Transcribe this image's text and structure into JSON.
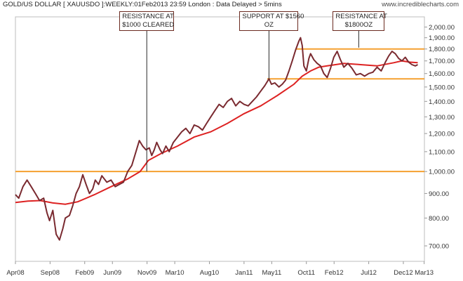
{
  "header": {
    "title": "GOLD/US DOLLAR [ XAUUSDO ]:WEEKLY:01Feb2013 23:59 London : Data Delayed > 5mins",
    "site": "www.incrediblecharts.com"
  },
  "annotations": [
    {
      "lines": [
        "RESISTANCE AT",
        "$1000 CLEARED"
      ],
      "date": "2009.83",
      "price": 1000
    },
    {
      "lines": [
        "SUPPORT AT $1560",
        "OZ"
      ],
      "date": "2011.3",
      "price": 1560
    },
    {
      "lines": [
        "RESISTANCE AT",
        "$1800OZ"
      ],
      "date": "2012.38",
      "price": 1800
    }
  ],
  "colors": {
    "price_line": "#7a2a30",
    "ma_line": "#dd2222",
    "level_line": "#f5a030",
    "grid": "#e8e8e8",
    "annotation_border": "#6a2a20"
  },
  "chart_data": {
    "type": "line",
    "title": "GOLD/US DOLLAR [ XAUUSDO ]:WEEKLY:01Feb2013 23:59 London : Data Delayed > 5mins",
    "xlabel": "",
    "ylabel": "",
    "scale": "log",
    "xlim": [
      "2008.25",
      "2013.17"
    ],
    "ylim": [
      650,
      2100
    ],
    "grid": false,
    "x_ticks": [
      "Apr08",
      "Sep08",
      "Feb09",
      "Jun09",
      "Nov09",
      "Mar10",
      "Aug10",
      "Jan11",
      "May11",
      "Oct11",
      "Feb12",
      "Jul12",
      "Dec12",
      "Mar13"
    ],
    "y_ticks": [
      "700.00",
      "800.00",
      "900.00",
      "1,000.00",
      "1,100.00",
      "1,200.00",
      "1,300.00",
      "1,400.00",
      "1,500.00",
      "1,600.00",
      "1,700.00",
      "1,800.00",
      "1,900.00",
      "2,000.00"
    ],
    "series": [
      {
        "x": [
          "2008.25",
          "2008.29",
          "2008.34",
          "2008.39",
          "2008.44",
          "2008.49",
          "2008.54",
          "2008.59",
          "2008.63",
          "2008.66",
          "2008.7",
          "2008.74",
          "2008.78",
          "2008.82",
          "2008.85",
          "2008.9",
          "2008.94",
          "2008.98",
          "2009.02",
          "2009.06",
          "2009.1",
          "2009.14",
          "2009.18",
          "2009.21",
          "2009.25",
          "2009.29",
          "2009.35",
          "2009.4",
          "2009.45",
          "2009.5",
          "2009.55",
          "2009.6",
          "2009.65",
          "2009.7",
          "2009.74",
          "2009.78",
          "2009.82",
          "2009.86",
          "2009.89",
          "2009.92",
          "2009.95",
          "2009.99",
          "2010.02",
          "2010.06",
          "2010.1",
          "2010.15",
          "2010.2",
          "2010.25",
          "2010.3",
          "2010.35",
          "2010.4",
          "2010.45",
          "2010.5",
          "2010.55",
          "2010.6",
          "2010.65",
          "2010.7",
          "2010.75",
          "2010.8",
          "2010.85",
          "2010.9",
          "2010.95",
          "2011.0",
          "2011.05",
          "2011.1",
          "2011.15",
          "2011.2",
          "2011.25",
          "2011.3",
          "2011.33",
          "2011.37",
          "2011.42",
          "2011.46",
          "2011.5",
          "2011.54",
          "2011.58",
          "2011.62",
          "2011.66",
          "2011.68",
          "2011.7",
          "2011.72",
          "2011.75",
          "2011.78",
          "2011.8",
          "2011.84",
          "2011.88",
          "2011.92",
          "2011.96",
          "2012.0",
          "2012.04",
          "2012.08",
          "2012.12",
          "2012.16",
          "2012.2",
          "2012.25",
          "2012.3",
          "2012.35",
          "2012.4",
          "2012.45",
          "2012.5",
          "2012.55",
          "2012.6",
          "2012.65",
          "2012.7",
          "2012.74",
          "2012.78",
          "2012.82",
          "2012.86",
          "2012.9",
          "2012.94",
          "2012.98",
          "2013.02",
          "2013.06",
          "2013.09"
        ],
        "values": [
          895,
          880,
          930,
          960,
          930,
          900,
          870,
          880,
          820,
          790,
          830,
          740,
          720,
          760,
          800,
          810,
          850,
          900,
          930,
          985,
          940,
          900,
          920,
          960,
          940,
          980,
          950,
          960,
          930,
          940,
          950,
          1000,
          1030,
          1100,
          1160,
          1130,
          1110,
          1120,
          1080,
          1110,
          1150,
          1110,
          1090,
          1130,
          1100,
          1150,
          1180,
          1210,
          1230,
          1200,
          1250,
          1240,
          1220,
          1260,
          1300,
          1340,
          1380,
          1360,
          1400,
          1420,
          1370,
          1400,
          1380,
          1370,
          1400,
          1430,
          1470,
          1510,
          1560,
          1520,
          1530,
          1500,
          1520,
          1550,
          1620,
          1700,
          1790,
          1870,
          1900,
          1830,
          1660,
          1620,
          1720,
          1760,
          1710,
          1680,
          1660,
          1600,
          1570,
          1640,
          1730,
          1780,
          1710,
          1650,
          1680,
          1640,
          1590,
          1600,
          1580,
          1600,
          1610,
          1650,
          1620,
          1690,
          1740,
          1780,
          1760,
          1720,
          1700,
          1730,
          1690,
          1670,
          1660,
          1670
        ]
      },
      {
        "x": [
          "2008.25",
          "2008.4",
          "2008.55",
          "2008.7",
          "2008.85",
          "2009.0",
          "2009.2",
          "2009.4",
          "2009.6",
          "2009.75",
          "2009.85",
          "2010.0",
          "2010.2",
          "2010.4",
          "2010.6",
          "2010.8",
          "2011.0",
          "2011.2",
          "2011.4",
          "2011.6",
          "2011.7",
          "2011.8",
          "2011.9",
          "2012.0",
          "2012.2",
          "2012.4",
          "2012.6",
          "2012.8",
          "2012.9",
          "2013.0",
          "2013.09"
        ],
        "values": [
          862,
          868,
          870,
          860,
          855,
          865,
          895,
          930,
          965,
          1000,
          1055,
          1090,
          1130,
          1180,
          1210,
          1260,
          1320,
          1370,
          1440,
          1520,
          1580,
          1620,
          1650,
          1660,
          1680,
          1670,
          1660,
          1685,
          1700,
          1690,
          1685
        ]
      }
    ],
    "reference_lines": [
      1000,
      1560,
      1800
    ]
  }
}
